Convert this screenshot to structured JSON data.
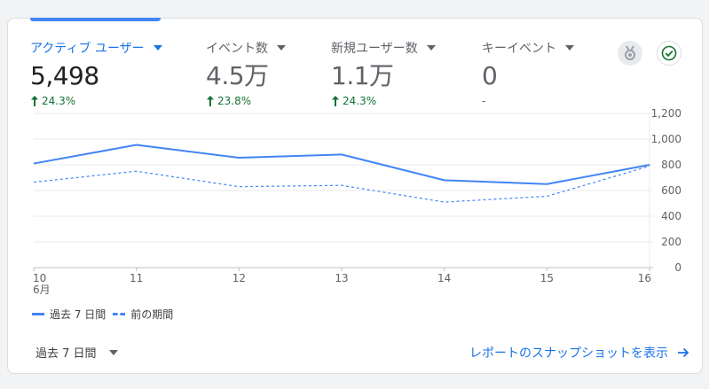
{
  "metrics": [
    {
      "label": "アクティブ ユーザー",
      "value": "5,498",
      "change": "24.3%",
      "active": true
    },
    {
      "label": "イベント数",
      "value": "4.5万",
      "change": "23.8%",
      "active": false
    },
    {
      "label": "新規ユーザー数",
      "value": "1.1万",
      "change": "24.3%",
      "active": false
    },
    {
      "label": "キーイベント",
      "value": "0",
      "change": "-",
      "active": false
    }
  ],
  "icons": {
    "insights": "award-ribbon-icon",
    "status": "check-circle-icon"
  },
  "colors": {
    "primary": "#1a73e8",
    "series": "#4285f4",
    "positive": "#137333"
  },
  "legend": {
    "current": "過去 7 日間",
    "previous": "前の期間"
  },
  "footer": {
    "range_label": "過去 7 日間",
    "snapshot_link": "レポートのスナップショットを表示"
  },
  "chart_data": {
    "type": "line",
    "categories": [
      "10",
      "11",
      "12",
      "13",
      "14",
      "15",
      "16"
    ],
    "x_sublabels": [
      "6月",
      "",
      "",
      "",
      "",
      "",
      ""
    ],
    "y_ticks": [
      0,
      200,
      400,
      600,
      800,
      1000,
      1200
    ],
    "y_tick_labels": [
      "0",
      "200",
      "400",
      "600",
      "800",
      "1,000",
      "1,200"
    ],
    "ylim": [
      0,
      1200
    ],
    "series": [
      {
        "name": "過去 7 日間",
        "style": "solid",
        "values": [
          810,
          955,
          855,
          880,
          680,
          650,
          800
        ]
      },
      {
        "name": "前の期間",
        "style": "dashed",
        "values": [
          665,
          750,
          630,
          640,
          510,
          555,
          790
        ]
      }
    ],
    "grid": true,
    "legend_position": "bottom-left"
  }
}
